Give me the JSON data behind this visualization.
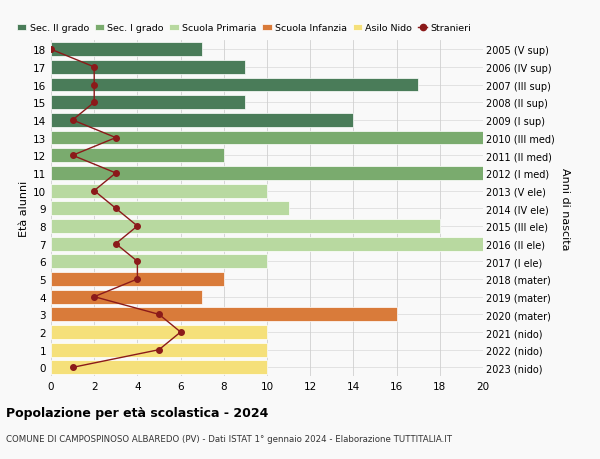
{
  "ages": [
    18,
    17,
    16,
    15,
    14,
    13,
    12,
    11,
    10,
    9,
    8,
    7,
    6,
    5,
    4,
    3,
    2,
    1,
    0
  ],
  "years": [
    "2005 (V sup)",
    "2006 (IV sup)",
    "2007 (III sup)",
    "2008 (II sup)",
    "2009 (I sup)",
    "2010 (III med)",
    "2011 (II med)",
    "2012 (I med)",
    "2013 (V ele)",
    "2014 (IV ele)",
    "2015 (III ele)",
    "2016 (II ele)",
    "2017 (I ele)",
    "2018 (mater)",
    "2019 (mater)",
    "2020 (mater)",
    "2021 (nido)",
    "2022 (nido)",
    "2023 (nido)"
  ],
  "bar_values": [
    7,
    9,
    17,
    9,
    14,
    20,
    8,
    20,
    10,
    11,
    18,
    20,
    10,
    8,
    7,
    16,
    10,
    10,
    10
  ],
  "bar_colors": [
    "#4a7c59",
    "#4a7c59",
    "#4a7c59",
    "#4a7c59",
    "#4a7c59",
    "#7aab6e",
    "#7aab6e",
    "#7aab6e",
    "#b8d9a0",
    "#b8d9a0",
    "#b8d9a0",
    "#b8d9a0",
    "#b8d9a0",
    "#d97b3a",
    "#d97b3a",
    "#d97b3a",
    "#f5e07a",
    "#f5e07a",
    "#f5e07a"
  ],
  "stranieri_values": [
    0,
    2,
    2,
    2,
    1,
    3,
    1,
    3,
    2,
    3,
    4,
    3,
    4,
    4,
    2,
    5,
    6,
    5,
    1
  ],
  "legend_labels": [
    "Sec. II grado",
    "Sec. I grado",
    "Scuola Primaria",
    "Scuola Infanzia",
    "Asilo Nido",
    "Stranieri"
  ],
  "legend_colors": [
    "#4a7c59",
    "#7aab6e",
    "#b8d9a0",
    "#d97b3a",
    "#f5e07a",
    "#8b1a1a"
  ],
  "title": "Popolazione per età scolastica - 2024",
  "subtitle": "COMUNE DI CAMPOSPINOSO ALBAREDO (PV) - Dati ISTAT 1° gennaio 2024 - Elaborazione TUTTITALIA.IT",
  "ylabel_left": "Età alunni",
  "ylabel_right": "Anni di nascita",
  "xlim": [
    0,
    20
  ],
  "bg_color": "#f9f9f9",
  "grid_color": "#d0d0d0"
}
